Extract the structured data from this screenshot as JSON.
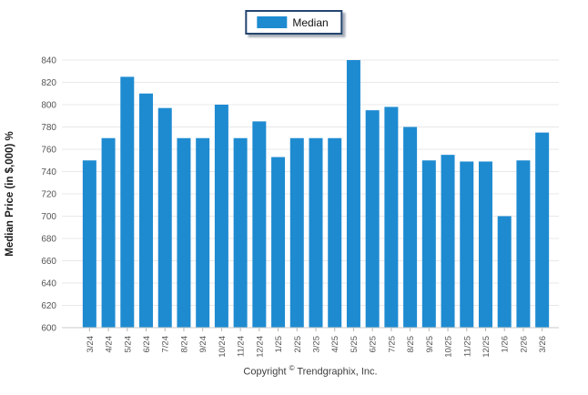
{
  "legend": {
    "label": "Median",
    "swatch_color": "#1e8bd1",
    "swatch_icon": "series-color-swatch"
  },
  "chart_data": {
    "type": "bar",
    "title": "",
    "xlabel": "",
    "ylabel": "Median Price (in $,000) %",
    "categories": [
      "3/24",
      "4/24",
      "5/24",
      "6/24",
      "7/24",
      "8/24",
      "9/24",
      "10/24",
      "11/24",
      "12/24",
      "1/25",
      "2/25",
      "3/25",
      "4/25",
      "5/25",
      "6/25",
      "7/25",
      "8/25",
      "9/25",
      "10/25",
      "11/25",
      "12/25",
      "1/26",
      "2/26",
      "3/26"
    ],
    "series": [
      {
        "name": "Median",
        "values": [
          750,
          770,
          825,
          810,
          797,
          770,
          770,
          800,
          770,
          785,
          753,
          770,
          770,
          770,
          840,
          795,
          798,
          780,
          750,
          755,
          749,
          749,
          700,
          750,
          775
        ]
      }
    ],
    "ylim": [
      600,
      840
    ],
    "yticks": [
      600,
      620,
      640,
      660,
      680,
      700,
      720,
      740,
      760,
      780,
      800,
      820,
      840
    ],
    "grid": "horizontal",
    "legend_position": "top-center",
    "bar_color": "#1e8bd1"
  },
  "footer": {
    "copyright_pre": "Copyright",
    "copyright_symbol": "©",
    "copyright_post": " Trendgraphix, Inc."
  },
  "colors": {
    "grid": "#e8e8e8",
    "axis_line": "#c8c8c8",
    "tick_mark": "#b4b4b4",
    "tick_label": "#555555",
    "axis_title": "#1b1b1b"
  }
}
